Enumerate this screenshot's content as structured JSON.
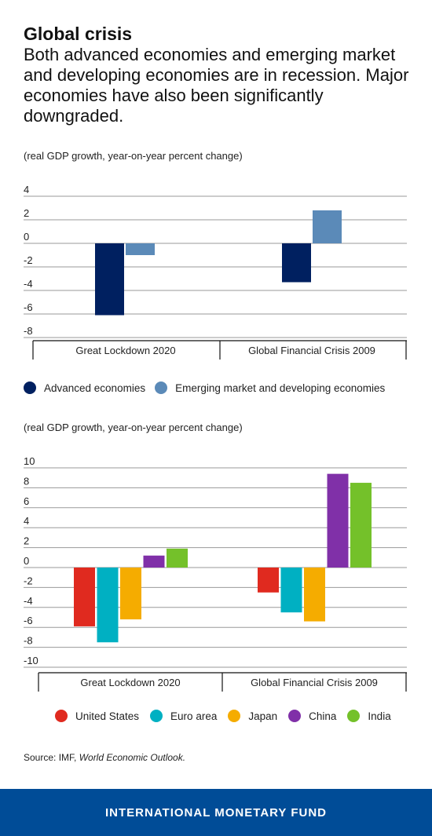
{
  "header": {
    "title": "Global crisis",
    "subtitle": "Both advanced economies and emerging market and developing economies are in recession. Major economies have also been significantly downgraded."
  },
  "chart_data": [
    {
      "type": "bar",
      "unit_label": "(real GDP growth, year-on-year percent change)",
      "categories": [
        "Great Lockdown 2020",
        "Global Financial Crisis 2009"
      ],
      "series": [
        {
          "name": "Advanced economies",
          "color": "#002060",
          "values": [
            -6.1,
            -3.3
          ]
        },
        {
          "name": "Emerging market and developing economies",
          "color": "#5b8ab8",
          "values": [
            -1.0,
            2.8
          ]
        }
      ],
      "yticks": [
        4,
        2,
        0,
        -2,
        -4,
        -6,
        -8
      ],
      "ylim": [
        -8,
        4
      ],
      "grid": true,
      "legend": "bottom"
    },
    {
      "type": "bar",
      "unit_label": "(real GDP growth, year-on-year percent change)",
      "categories": [
        "Great Lockdown 2020",
        "Global Financial Crisis 2009"
      ],
      "series": [
        {
          "name": "United States",
          "color": "#e02a1f",
          "values": [
            -5.9,
            -2.5
          ]
        },
        {
          "name": "Euro area",
          "color": "#00b0c2",
          "values": [
            -7.5,
            -4.5
          ]
        },
        {
          "name": "Japan",
          "color": "#f5ac00",
          "values": [
            -5.2,
            -5.4
          ]
        },
        {
          "name": "China",
          "color": "#8030a8",
          "values": [
            1.2,
            9.4
          ]
        },
        {
          "name": "India",
          "color": "#74c12a",
          "values": [
            1.9,
            8.5
          ]
        }
      ],
      "yticks": [
        10,
        8,
        6,
        4,
        2,
        0,
        -2,
        -4,
        -6,
        -8,
        -10
      ],
      "ylim": [
        -10,
        10
      ],
      "grid": true,
      "legend": "bottom"
    }
  ],
  "source": {
    "label": "Source: IMF, ",
    "publication": "World Economic Outlook."
  },
  "footer": {
    "org": "INTERNATIONAL MONETARY FUND"
  }
}
